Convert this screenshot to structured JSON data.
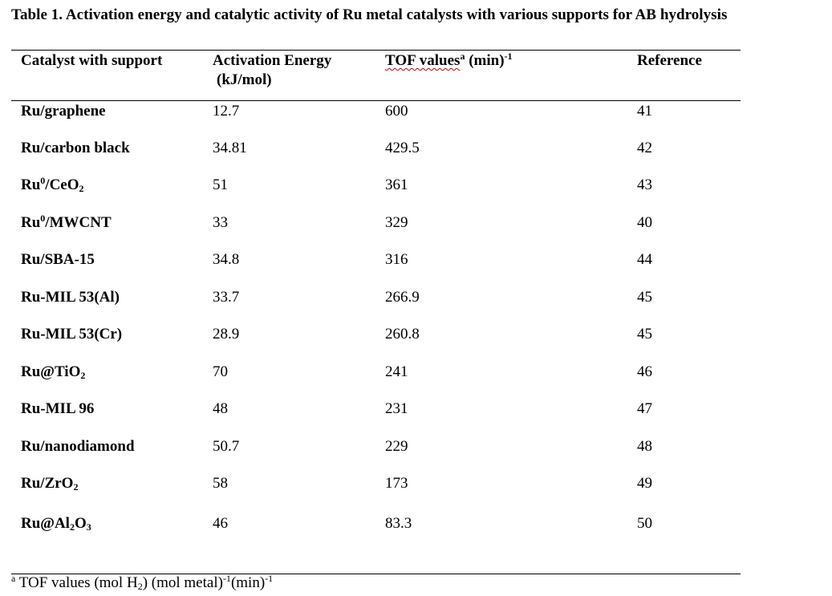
{
  "title": "Table 1. Activation energy and catalytic activity of Ru metal catalysts with various supports for AB hydrolysis",
  "headers": {
    "catalyst": "Catalyst with support",
    "ea_line1": "Activation Energy",
    "ea_line2": "(kJ/mol)",
    "tof_main": "TOF values",
    "tof_sup": "a",
    "tof_unit": " (min)",
    "tof_unit_sup": "-1",
    "reference": "Reference"
  },
  "rows": [
    {
      "parts": [
        {
          "t": "Ru/graphene"
        }
      ],
      "ea": "12.7",
      "tof": "600",
      "ref": "41"
    },
    {
      "parts": [
        {
          "t": "Ru/carbon black"
        }
      ],
      "ea": "34.81",
      "tof": "429.5",
      "ref": "42"
    },
    {
      "parts": [
        {
          "t": "Ru"
        },
        {
          "sup": "0"
        },
        {
          "t": "/CeO"
        },
        {
          "sub": "2"
        }
      ],
      "ea": "51",
      "tof": "361",
      "ref": "43"
    },
    {
      "parts": [
        {
          "t": "Ru"
        },
        {
          "sup": "0"
        },
        {
          "t": "/MWCNT"
        }
      ],
      "ea": "33",
      "tof": "329",
      "ref": "40"
    },
    {
      "parts": [
        {
          "t": "Ru/SBA-15"
        }
      ],
      "ea": "34.8",
      "tof": "316",
      "ref": "44"
    },
    {
      "parts": [
        {
          "t": "Ru-MIL 53(Al)"
        }
      ],
      "ea": "33.7",
      "tof": "266.9",
      "ref": "45"
    },
    {
      "parts": [
        {
          "t": "Ru-MIL 53(Cr)"
        }
      ],
      "ea": "28.9",
      "tof": "260.8",
      "ref": "45"
    },
    {
      "parts": [
        {
          "t": "Ru@TiO"
        },
        {
          "sub": "2"
        }
      ],
      "ea": "70",
      "tof": "241",
      "ref": "46"
    },
    {
      "parts": [
        {
          "t": "Ru-MIL 96"
        }
      ],
      "ea": "48",
      "tof": "231",
      "ref": "47"
    },
    {
      "parts": [
        {
          "t": "Ru/nanodiamond"
        }
      ],
      "ea": "50.7",
      "tof": "229",
      "ref": "48"
    },
    {
      "parts": [
        {
          "t": "Ru/ZrO"
        },
        {
          "sub": "2"
        }
      ],
      "ea": "58",
      "tof": "173",
      "ref": "49"
    },
    {
      "parts": [
        {
          "t": "Ru@Al"
        },
        {
          "sub": "2"
        },
        {
          "t": "O"
        },
        {
          "sub": "3"
        }
      ],
      "ea": "46",
      "tof": "83.3",
      "ref": "50"
    }
  ],
  "footnote": {
    "mark": "a",
    "p1": " TOF values (mol H",
    "sub1": "2",
    "p2": ") (mol metal)",
    "sup1": "-1",
    "p3": "(min)",
    "sup2": "-1"
  }
}
